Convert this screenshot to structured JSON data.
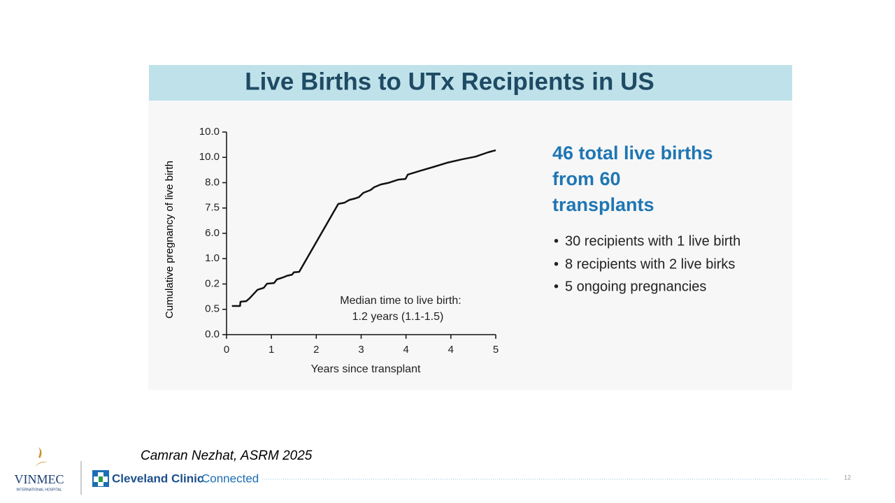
{
  "slide_title": "Live Births to UTx Recipients in US",
  "chart_data": {
    "type": "line",
    "y_label": "Cumulative pregnancy of live birth",
    "x_label": "Years since transplant",
    "annotations": [
      "Median time to live birth:",
      "1.2 years (1.1-1.5)"
    ],
    "color": "#111111",
    "xlim": [
      0,
      6
    ],
    "xticks": [
      0,
      1,
      2,
      3,
      4,
      {
        "value": 5,
        "label": "4"
      },
      {
        "value": 6,
        "label": "5"
      }
    ],
    "ylim": [
      0,
      8
    ],
    "yticks": [
      {
        "value": 0,
        "label": "0.0"
      },
      {
        "value": 1,
        "label": "0.5"
      },
      {
        "value": 2,
        "label": "0.2"
      },
      {
        "value": 3,
        "label": "1.0"
      },
      {
        "value": 4,
        "label": "6.0"
      },
      {
        "value": 5,
        "label": "7.5"
      },
      {
        "value": 6,
        "label": "8.0"
      },
      {
        "value": 7,
        "label": "10.0"
      },
      {
        "value": 8,
        "label": "10.0"
      }
    ],
    "x": [
      0.12,
      0.3,
      0.31,
      0.44,
      0.51,
      0.69,
      0.83,
      0.9,
      1.06,
      1.12,
      1.26,
      1.34,
      1.46,
      1.5,
      1.62,
      2.49,
      2.63,
      2.74,
      2.87,
      2.95,
      3.05,
      3.21,
      3.29,
      3.44,
      3.6,
      3.83,
      3.99,
      4.04,
      4.3,
      4.61,
      4.92,
      5.24,
      5.55,
      5.83,
      6.0
    ],
    "values": [
      1.13,
      1.13,
      1.3,
      1.32,
      1.43,
      1.77,
      1.85,
      2.01,
      2.04,
      2.18,
      2.26,
      2.32,
      2.37,
      2.46,
      2.48,
      5.16,
      5.21,
      5.32,
      5.38,
      5.43,
      5.6,
      5.71,
      5.82,
      5.93,
      5.99,
      6.12,
      6.15,
      6.32,
      6.46,
      6.62,
      6.79,
      6.92,
      7.03,
      7.2,
      7.28
    ]
  },
  "callout": [
    "46 total live births",
    "from 60",
    "transplants"
  ],
  "bullets": [
    "30 recipients with 1 live birth",
    "8 recipients with 2 live birks",
    "5 ongoing pregnancies"
  ],
  "citation": "Camran Nezhat, ASRM 2025",
  "footer": {
    "vinmec": "VINMEC",
    "vinmec_sub": "INTERNATIONAL HOSPITAL",
    "cleveland": "Cleveland Clinic",
    "connected": "Connected",
    "page": "12"
  }
}
